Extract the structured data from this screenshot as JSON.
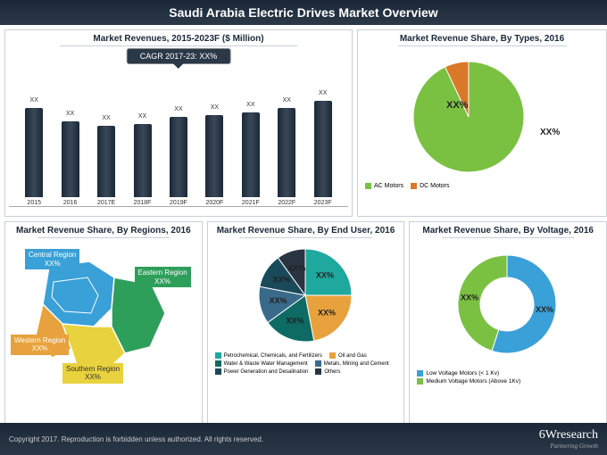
{
  "title": "Saudi Arabia Electric Drives Market Overview",
  "footer_text": "Copyright 2017. Reproduction is forbidden unless authorized. All rights reserved.",
  "brand": "6Wresearch",
  "brand_tagline": "Partnering Growth",
  "panels": {
    "revenues": {
      "title": "Market Revenues, 2015-2023F ($ Million)",
      "cagr": "CAGR 2017-23: XX%",
      "years": [
        "2015",
        "2016",
        "2017E",
        "2018F",
        "2019F",
        "2020F",
        "2021F",
        "2022F",
        "2023F"
      ],
      "values": [
        "XX",
        "XX",
        "XX",
        "XX",
        "XX",
        "XX",
        "XX",
        "XX",
        "XX"
      ],
      "heights": [
        100,
        85,
        80,
        82,
        90,
        92,
        95,
        100,
        108
      ],
      "bar_color": "#1a2838"
    },
    "types": {
      "title": "Market Revenue Share, By Types, 2016",
      "slices": [
        {
          "label": "AC Motors",
          "color": "#7ac142",
          "value": 93,
          "text": "XX%"
        },
        {
          "label": "DC Motors",
          "color": "#d97828",
          "value": 7,
          "text": "XX%"
        }
      ]
    },
    "regions": {
      "title": "Market Revenue Share, By Regions, 2016",
      "items": [
        {
          "name": "Central Region",
          "value": "XX%",
          "color": "#3aa0d8"
        },
        {
          "name": "Eastern Region",
          "value": "XX%",
          "color": "#2e9e5b"
        },
        {
          "name": "Western Region",
          "value": "XX%",
          "color": "#e8a23d"
        },
        {
          "name": "Southern Region",
          "value": "XX%",
          "color": "#e8d23d"
        }
      ]
    },
    "enduser": {
      "title": "Market Revenue Share, By End User, 2016",
      "slices": [
        {
          "label": "Petrochemical, Chemicals, and Fertilizers",
          "color": "#1ea89e",
          "value": 25,
          "text": "XX%"
        },
        {
          "label": "Oil and Gas",
          "color": "#e8a23d",
          "value": 22,
          "text": "XX%"
        },
        {
          "label": "Water & Waste Water Management",
          "color": "#0d6b63",
          "value": 18,
          "text": "XX%"
        },
        {
          "label": "Metals, Mining and Cement",
          "color": "#3a6a8a",
          "value": 13,
          "text": "XX%"
        },
        {
          "label": "Power Generation and Desalination",
          "color": "#1a4a5a",
          "value": 12,
          "text": "XX%"
        },
        {
          "label": "Others",
          "color": "#2a3442",
          "value": 10,
          "text": "XX%"
        }
      ]
    },
    "voltage": {
      "title": "Market Revenue Share, By Voltage, 2016",
      "slices": [
        {
          "label": "Low Voltage Motors (< 1 Kv)",
          "color": "#3aa0d8",
          "value": 55,
          "text": "XX%"
        },
        {
          "label": "Medium Voltage Motors (Above 1Kv)",
          "color": "#7ac142",
          "value": 45,
          "text": "XX%"
        }
      ]
    }
  }
}
